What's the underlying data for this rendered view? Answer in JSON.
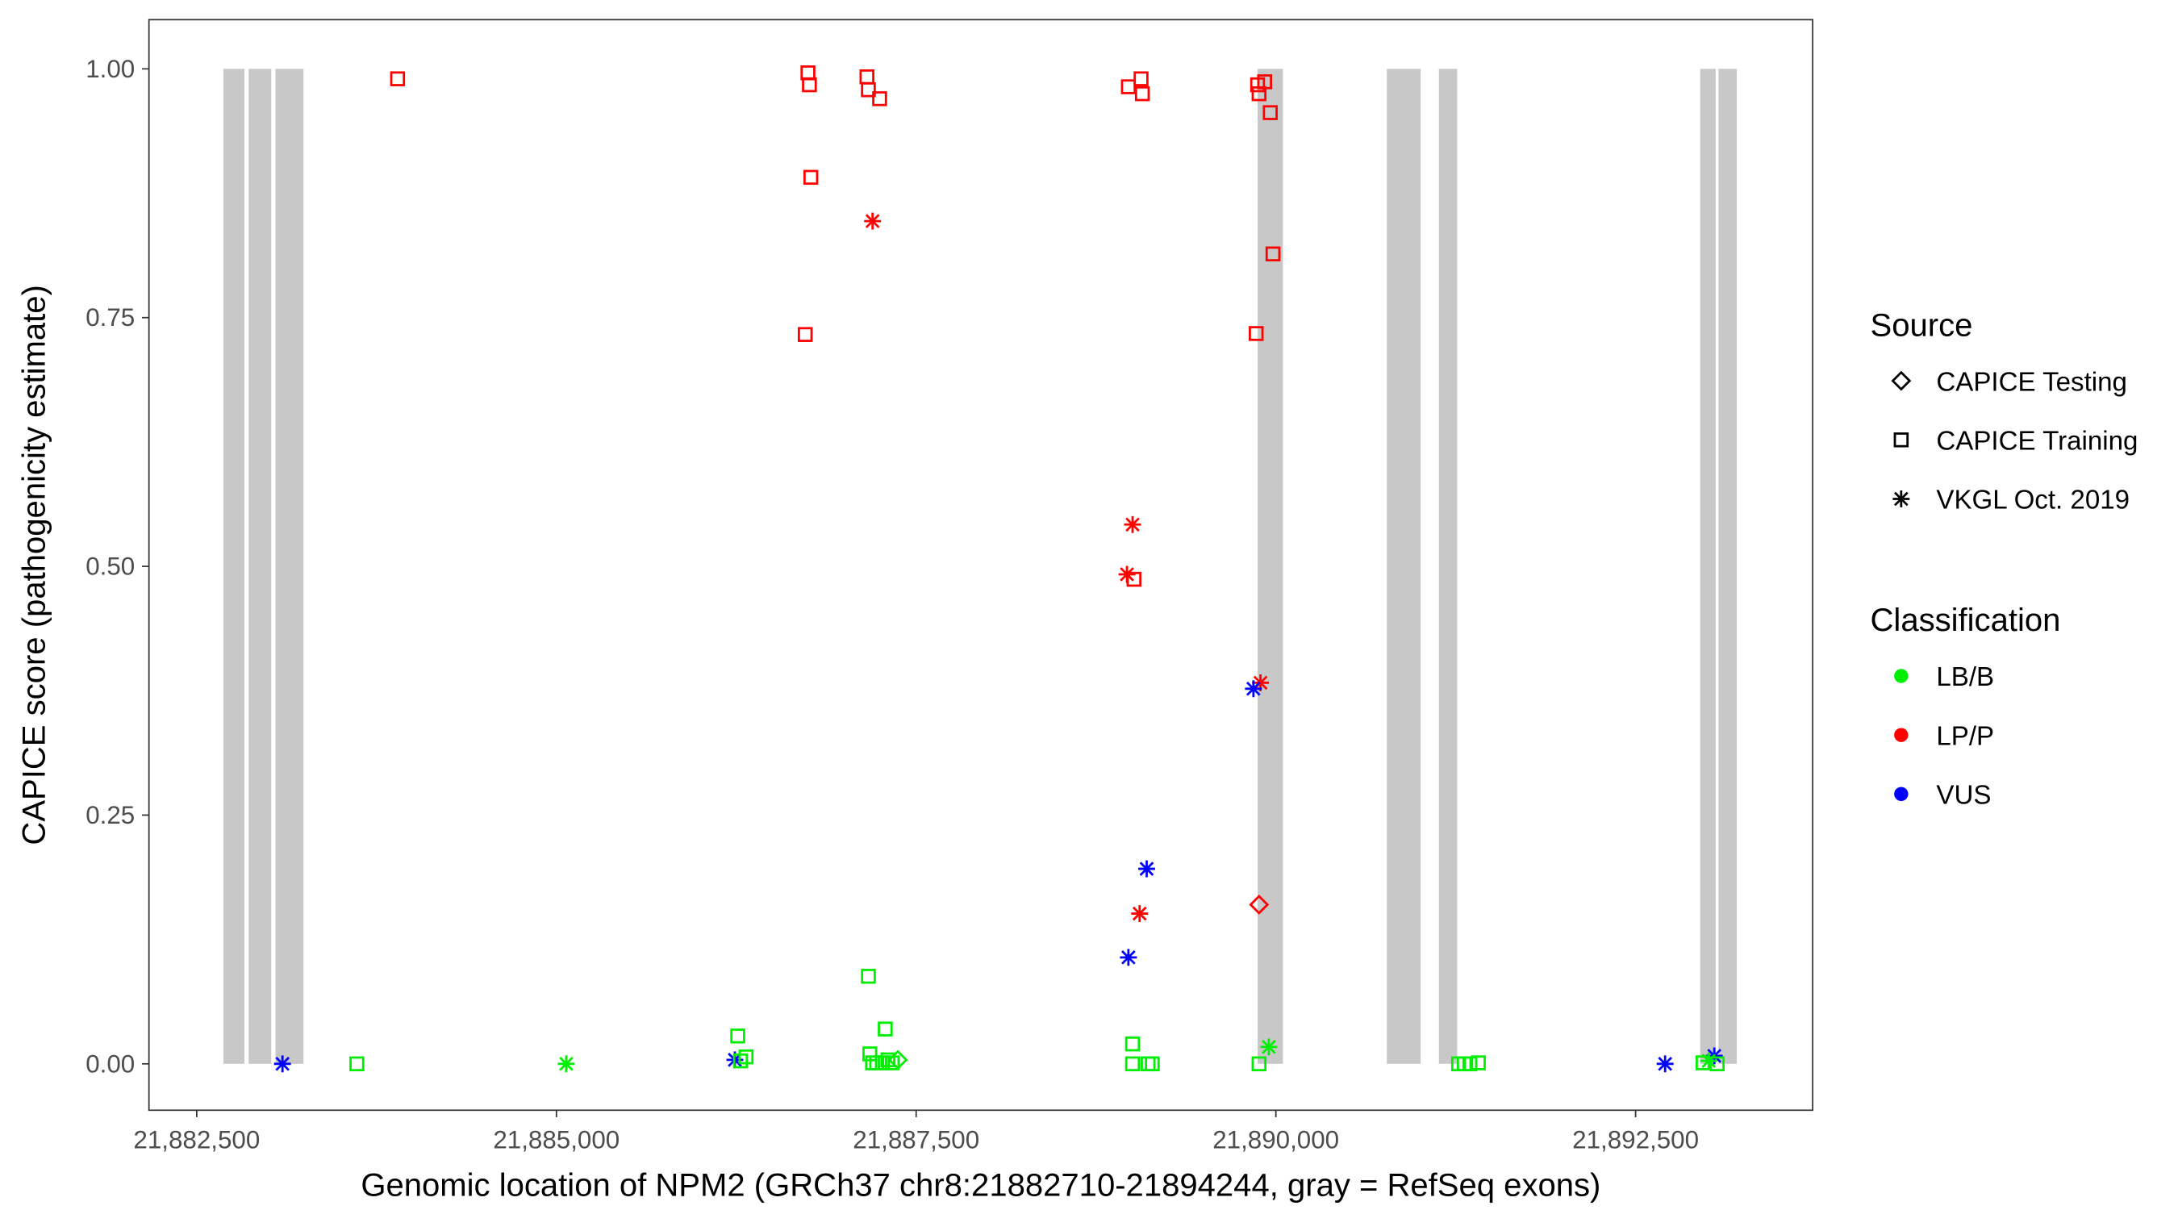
{
  "chart_data": {
    "type": "scatter",
    "xlabel": "Genomic location of NPM2 (GRCh37 chr8:21882710-21894244, gray = RefSeq exons)",
    "ylabel": "CAPICE score (pathogenicity estimate)",
    "xlim": [
      21882245,
      21894755
    ],
    "ylim": [
      -0.05,
      1.05
    ],
    "x_ticks": [
      21882500,
      21885000,
      21887500,
      21890000,
      21892500
    ],
    "x_tick_labels": [
      "21,882,500",
      "21,885,000",
      "21,887,500",
      "21,890,000",
      "21,892,500"
    ],
    "y_ticks": [
      0,
      0.25,
      0.5,
      0.75,
      1
    ],
    "y_tick_labels": [
      "0.00",
      "0.25",
      "0.50",
      "0.75",
      "1.00"
    ],
    "grid": false,
    "exons": [
      [
        21882686,
        21882832
      ],
      [
        21882861,
        21883018
      ],
      [
        21883047,
        21883242
      ],
      [
        21889873,
        21890049
      ],
      [
        21890771,
        21891006
      ],
      [
        21891133,
        21891260
      ],
      [
        21892949,
        21893057
      ],
      [
        21893076,
        21893203
      ]
    ],
    "exon_color": "#c8c8c8",
    "legend": {
      "placement": "right",
      "source_title": "Source",
      "source_items": [
        {
          "label": "CAPICE Testing",
          "shape": "diamond"
        },
        {
          "label": "CAPICE Training",
          "shape": "square"
        },
        {
          "label": "VKGL Oct. 2019",
          "shape": "star"
        }
      ],
      "class_title": "Classification",
      "class_items": [
        {
          "label": "LB/B",
          "color": "#00ee00"
        },
        {
          "label": "LP/P",
          "color": "#ff0000"
        },
        {
          "label": "VUS",
          "color": "#0000ff"
        }
      ]
    },
    "points": [
      [
        21883896,
        0.99,
        "square",
        "LP/P"
      ],
      [
        21886748,
        0.996,
        "square",
        "LP/P"
      ],
      [
        21886758,
        0.984,
        "square",
        "LP/P"
      ],
      [
        21886768,
        0.891,
        "square",
        "LP/P"
      ],
      [
        21886729,
        0.733,
        "square",
        "LP/P"
      ],
      [
        21887158,
        0.992,
        "square",
        "LP/P"
      ],
      [
        21887168,
        0.979,
        "square",
        "LP/P"
      ],
      [
        21887246,
        0.97,
        "square",
        "LP/P"
      ],
      [
        21888975,
        0.982,
        "square",
        "LP/P"
      ],
      [
        21889063,
        0.99,
        "square",
        "LP/P"
      ],
      [
        21889072,
        0.975,
        "square",
        "LP/P"
      ],
      [
        21889014,
        0.487,
        "square",
        "LP/P"
      ],
      [
        21889873,
        0.984,
        "square",
        "LP/P"
      ],
      [
        21889883,
        0.975,
        "square",
        "LP/P"
      ],
      [
        21889922,
        0.987,
        "square",
        "LP/P"
      ],
      [
        21889961,
        0.956,
        "square",
        "LP/P"
      ],
      [
        21889980,
        0.814,
        "square",
        "LP/P"
      ],
      [
        21889863,
        0.734,
        "square",
        "LP/P"
      ],
      [
        21887197,
        0.847,
        "star",
        "LP/P"
      ],
      [
        21889004,
        0.542,
        "star",
        "LP/P"
      ],
      [
        21888965,
        0.492,
        "star",
        "LP/P"
      ],
      [
        21889053,
        0.151,
        "star",
        "LP/P"
      ],
      [
        21889893,
        0.383,
        "star",
        "LP/P"
      ],
      [
        21889883,
        0.16,
        "diamond",
        "LP/P"
      ],
      [
        21883096,
        0.0,
        "star",
        "VUS"
      ],
      [
        21886240,
        0.004,
        "star",
        "VUS"
      ],
      [
        21889844,
        0.377,
        "star",
        "VUS"
      ],
      [
        21889102,
        0.196,
        "star",
        "VUS"
      ],
      [
        21888975,
        0.107,
        "star",
        "VUS"
      ],
      [
        21892705,
        0.0,
        "star",
        "VUS"
      ],
      [
        21893047,
        0.008,
        "star",
        "VUS"
      ],
      [
        21885068,
        0.0,
        "star",
        "LB/B"
      ],
      [
        21889951,
        0.017,
        "star",
        "LB/B"
      ],
      [
        21893008,
        0.003,
        "star",
        "LB/B"
      ],
      [
        21883613,
        0.0,
        "square",
        "LB/B"
      ],
      [
        21886260,
        0.028,
        "square",
        "LB/B"
      ],
      [
        21886279,
        0.003,
        "square",
        "LB/B"
      ],
      [
        21886318,
        0.007,
        "square",
        "LB/B"
      ],
      [
        21887168,
        0.088,
        "square",
        "LB/B"
      ],
      [
        21887285,
        0.035,
        "square",
        "LB/B"
      ],
      [
        21887178,
        0.01,
        "square",
        "LB/B"
      ],
      [
        21887197,
        0.001,
        "square",
        "LB/B"
      ],
      [
        21887226,
        0.001,
        "square",
        "LB/B"
      ],
      [
        21887265,
        0.001,
        "square",
        "LB/B"
      ],
      [
        21887304,
        0.004,
        "square",
        "LB/B"
      ],
      [
        21887334,
        0.001,
        "square",
        "LB/B"
      ],
      [
        21889004,
        0.02,
        "square",
        "LB/B"
      ],
      [
        21889004,
        0.0,
        "square",
        "LB/B"
      ],
      [
        21889112,
        0.0,
        "square",
        "LB/B"
      ],
      [
        21889141,
        0.0,
        "square",
        "LB/B"
      ],
      [
        21889883,
        0.0,
        "square",
        "LB/B"
      ],
      [
        21891270,
        0.0,
        "square",
        "LB/B"
      ],
      [
        21891309,
        0.0,
        "square",
        "LB/B"
      ],
      [
        21891348,
        0.0,
        "square",
        "LB/B"
      ],
      [
        21891407,
        0.001,
        "square",
        "LB/B"
      ],
      [
        21892969,
        0.001,
        "square",
        "LB/B"
      ],
      [
        21893067,
        0.0,
        "square",
        "LB/B"
      ],
      [
        21887373,
        0.004,
        "diamond",
        "LB/B"
      ]
    ]
  }
}
